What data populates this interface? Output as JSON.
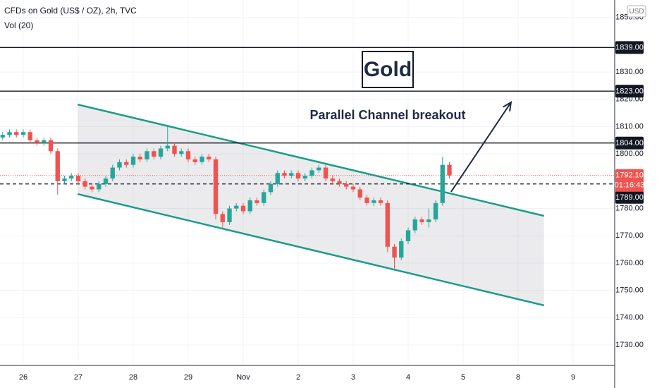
{
  "chart_data": {
    "type": "candlestick",
    "title": "CFDs on Gold (US$ / OZ), 2h, TVC",
    "subtitle": "Vol (20)",
    "currency": "USD",
    "annotation": "Parallel Channel breakout",
    "badge": "Gold",
    "x": [
      -0.375,
      -0.25,
      -0.125,
      0,
      0.125,
      0.25,
      0.375,
      0.5,
      0.625,
      0.75,
      0.875,
      1,
      1.125,
      1.25,
      1.375,
      1.5,
      1.625,
      1.75,
      1.875,
      2,
      2.125,
      2.25,
      2.375,
      2.5,
      2.625,
      2.75,
      2.875,
      3,
      3.125,
      3.25,
      3.375,
      3.5,
      3.625,
      3.75,
      3.875,
      4,
      4.125,
      4.25,
      4.375,
      4.5,
      4.625,
      4.75,
      4.875,
      5,
      5.125,
      5.25,
      5.375,
      5.5,
      5.625,
      5.75,
      5.875,
      6,
      6.125,
      6.25,
      6.375,
      6.5,
      6.625,
      6.75,
      6.875,
      7,
      7.125,
      7.25,
      7.375,
      7.5,
      7.625,
      7.75
    ],
    "open": [
      1806,
      1807,
      1808,
      1807,
      1808,
      1805,
      1804,
      1805,
      1801,
      1790,
      1791,
      1792,
      1790,
      1788,
      1787,
      1789,
      1791,
      1795,
      1797,
      1796,
      1799,
      1798,
      1801,
      1799,
      1802,
      1803,
      1800,
      1801,
      1798,
      1797,
      1799,
      1798,
      1778,
      1775,
      1780,
      1781,
      1779,
      1783,
      1782,
      1786,
      1789,
      1793,
      1792,
      1793,
      1791,
      1792,
      1794,
      1795,
      1791,
      1790,
      1789,
      1788,
      1787,
      1784,
      1782,
      1783,
      1782,
      1766,
      1762,
      1768,
      1772,
      1776,
      1775,
      1776,
      1782,
      1796
    ],
    "high": [
      1808,
      1809,
      1809,
      1809,
      1809,
      1806,
      1806,
      1806,
      1802,
      1792,
      1793,
      1793,
      1791,
      1789,
      1790,
      1792,
      1796,
      1798,
      1798,
      1800,
      1800,
      1802,
      1802,
      1803,
      1810,
      1804,
      1802,
      1802,
      1799,
      1800,
      1800,
      1799,
      1779,
      1781,
      1782,
      1782,
      1784,
      1784,
      1787,
      1790,
      1794,
      1794,
      1794,
      1794,
      1793,
      1795,
      1796,
      1796,
      1792,
      1791,
      1790,
      1789,
      1788,
      1785,
      1784,
      1784,
      1783,
      1767,
      1769,
      1773,
      1777,
      1777,
      1780,
      1783,
      1799,
      1797
    ],
    "low": [
      1805,
      1806,
      1806,
      1806,
      1804,
      1803,
      1803,
      1800,
      1785,
      1789,
      1790,
      1789,
      1787,
      1786,
      1786,
      1788,
      1790,
      1794,
      1795,
      1795,
      1797,
      1797,
      1798,
      1798,
      1801,
      1799,
      1799,
      1797,
      1796,
      1796,
      1797,
      1776,
      1773,
      1774,
      1779,
      1778,
      1778,
      1781,
      1781,
      1785,
      1788,
      1791,
      1791,
      1790,
      1790,
      1791,
      1793,
      1790,
      1789,
      1788,
      1787,
      1786,
      1783,
      1781,
      1781,
      1781,
      1764,
      1758,
      1761,
      1767,
      1771,
      1774,
      1773,
      1775,
      1781,
      1791
    ],
    "close": [
      1807,
      1808,
      1807,
      1808,
      1805,
      1804,
      1805,
      1801,
      1790,
      1791,
      1792,
      1790,
      1788,
      1787,
      1789,
      1791,
      1795,
      1797,
      1796,
      1799,
      1798,
      1801,
      1799,
      1802,
      1803,
      1800,
      1801,
      1798,
      1797,
      1799,
      1798,
      1778,
      1775,
      1780,
      1781,
      1779,
      1783,
      1782,
      1786,
      1789,
      1793,
      1792,
      1793,
      1791,
      1792,
      1794,
      1795,
      1791,
      1790,
      1789,
      1788,
      1787,
      1784,
      1782,
      1783,
      1782,
      1766,
      1762,
      1768,
      1772,
      1776,
      1775,
      1776,
      1782,
      1796,
      1792.1
    ],
    "up_color": "#26a69a",
    "down_color": "#ef5350",
    "xlim": [
      -0.423,
      10.756
    ],
    "xticks": [
      {
        "value": 0,
        "label": "26"
      },
      {
        "value": 1,
        "label": "27"
      },
      {
        "value": 2,
        "label": "28"
      },
      {
        "value": 3,
        "label": "29"
      },
      {
        "value": 4,
        "label": "Nov"
      },
      {
        "value": 5,
        "label": "2"
      },
      {
        "value": 6,
        "label": "3"
      },
      {
        "value": 7,
        "label": "4"
      },
      {
        "value": 8,
        "label": "5"
      },
      {
        "value": 9,
        "label": "8"
      },
      {
        "value": 10,
        "label": "9"
      }
    ],
    "ylim": [
      1722.5,
      1856.4
    ],
    "yticks": [
      {
        "value": 1850,
        "label": "1850.00"
      },
      {
        "value": 1830,
        "label": "1830.00"
      },
      {
        "value": 1820,
        "label": "1820.00"
      },
      {
        "value": 1810,
        "label": "1810.00"
      },
      {
        "value": 1800,
        "label": "1800.00"
      },
      {
        "value": 1780,
        "label": "1780.00"
      },
      {
        "value": 1770,
        "label": "1770.00"
      },
      {
        "value": 1760,
        "label": "1760.00"
      },
      {
        "value": 1750,
        "label": "1750.00"
      },
      {
        "value": 1740,
        "label": "1740.00"
      },
      {
        "value": 1730,
        "label": "1730.00"
      }
    ],
    "grid": true,
    "levels": [
      {
        "value": 1839,
        "label": "1839.00"
      },
      {
        "value": 1823,
        "label": "1823.00"
      },
      {
        "value": 1804,
        "label": "1804.00"
      }
    ],
    "level_color": "#131722",
    "dashed_level": {
      "value": 1789,
      "label": "1789.00"
    },
    "last_price": {
      "value": 1792.1,
      "label": "1792.10"
    },
    "countdown": "01:16:43",
    "channel": {
      "color": "#1a9c8a",
      "upper": {
        "x": [
          0.99,
          9.47
        ],
        "y": [
          1818.1,
          1777.3
        ]
      },
      "lower": {
        "x": [
          0.99,
          9.47
        ],
        "y": [
          1785.3,
          1744.5
        ]
      }
    },
    "arrow": {
      "x": [
        7.78,
        8.87
      ],
      "y": [
        1786.1,
        1818.9
      ]
    }
  }
}
